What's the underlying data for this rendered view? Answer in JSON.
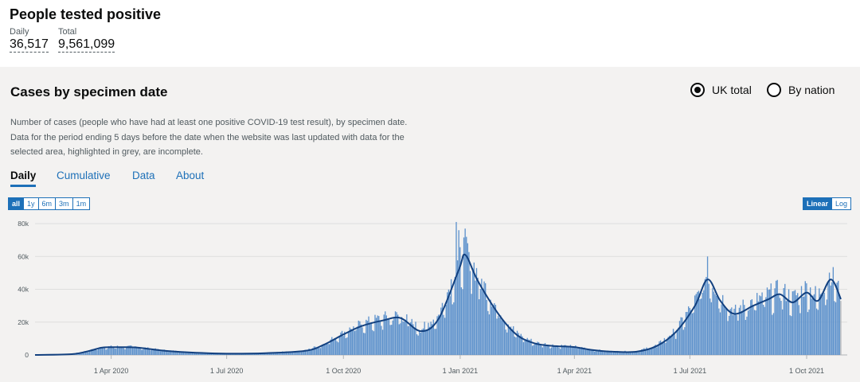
{
  "header": {
    "title": "People tested positive",
    "daily_label": "Daily",
    "daily_value": "36,517",
    "total_label": "Total",
    "total_value": "9,561,099"
  },
  "card": {
    "title": "Cases by specimen date",
    "radio_uk": "UK total",
    "radio_nation": "By nation",
    "description": "Number of cases (people who have had at least one positive COVID-19 test result), by specimen date. Data for the period ending 5 days before the date when the website was last updated with data for the selected area, highlighted in grey, are incomplete.",
    "tabs": [
      "Daily",
      "Cumulative",
      "Data",
      "About"
    ],
    "range_buttons": [
      "all",
      "1y",
      "6m",
      "3m",
      "1m"
    ],
    "scale_buttons": [
      "Linear",
      "Log"
    ]
  },
  "colors": {
    "bar": "#5e92cc",
    "incomplete_bar": "#b1b4b6",
    "line": "#12407f",
    "link": "#1d70b8"
  },
  "chart_data": {
    "type": "bar",
    "title": "",
    "xlabel": "",
    "ylabel": "",
    "ylim": [
      0,
      80000
    ],
    "y_ticks": [
      0,
      20000,
      40000,
      60000,
      80000
    ],
    "y_tick_labels": [
      "0",
      "20k",
      "40k",
      "60k",
      "80k"
    ],
    "x_range": [
      "2020-02-01",
      "2021-11-02"
    ],
    "x_ticks": [
      "2020-04-01",
      "2020-07-01",
      "2020-10-01",
      "2021-01-01",
      "2021-04-01",
      "2021-07-01",
      "2021-10-01"
    ],
    "x_tick_labels": [
      "1 Apr 2020",
      "1 Jul 2020",
      "1 Oct 2020",
      "1 Jan 2021",
      "1 Apr 2021",
      "1 Jul 2021",
      "1 Oct 2021"
    ],
    "incomplete_from": "2021-10-28",
    "series": [
      {
        "name": "",
        "kind": "line-and-bars",
        "x": [
          "2020-02-01",
          "2020-03-01",
          "2020-03-15",
          "2020-03-25",
          "2020-04-05",
          "2020-04-20",
          "2020-05-10",
          "2020-06-01",
          "2020-07-01",
          "2020-08-01",
          "2020-09-01",
          "2020-09-15",
          "2020-10-01",
          "2020-10-15",
          "2020-11-01",
          "2020-11-15",
          "2020-12-01",
          "2020-12-15",
          "2020-12-31",
          "2021-01-05",
          "2021-01-15",
          "2021-02-01",
          "2021-02-15",
          "2021-03-01",
          "2021-03-15",
          "2021-04-01",
          "2021-04-15",
          "2021-05-01",
          "2021-05-20",
          "2021-06-05",
          "2021-06-20",
          "2021-07-05",
          "2021-07-15",
          "2021-07-25",
          "2021-08-05",
          "2021-08-20",
          "2021-09-01",
          "2021-09-10",
          "2021-09-20",
          "2021-10-01",
          "2021-10-10",
          "2021-10-20",
          "2021-10-28"
        ],
        "values": [
          0,
          500,
          2500,
          4500,
          4700,
          4600,
          2800,
          1600,
          800,
          1100,
          2500,
          6000,
          12500,
          17500,
          21000,
          22500,
          14500,
          22000,
          52000,
          61000,
          45000,
          24000,
          12000,
          7000,
          5500,
          4800,
          3000,
          2000,
          2000,
          5500,
          14000,
          30000,
          46000,
          33000,
          25000,
          30000,
          34000,
          37000,
          32000,
          38000,
          33000,
          46000,
          34000
        ]
      }
    ]
  }
}
